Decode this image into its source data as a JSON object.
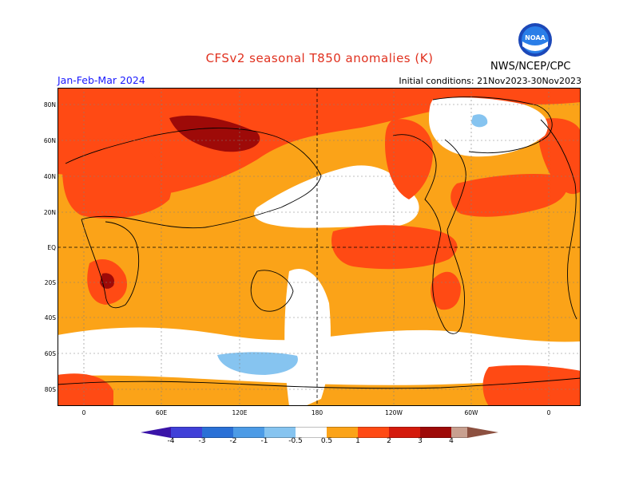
{
  "title": "CFSv2 seasonal T850 anomalies (K)",
  "period": "Jan-Feb-Mar 2024",
  "initial_conditions": "Initial conditions: 21Nov2023-30Nov2023",
  "agency": "NWS/NCEP/CPC",
  "logo_text": "NOAA",
  "lat_labels": [
    "80N",
    "60N",
    "40N",
    "20N",
    "EQ",
    "20S",
    "40S",
    "60S",
    "80S"
  ],
  "lon_labels": [
    "0",
    "60E",
    "120E",
    "180",
    "120W",
    "60W",
    "0"
  ],
  "colorbar": {
    "labels": [
      "-4",
      "-3",
      "-2",
      "-1",
      "-0.5",
      "0.5",
      "1",
      "2",
      "3",
      "4"
    ],
    "colors": [
      "#3a14a8",
      "#4040d8",
      "#2a70d6",
      "#4c9be6",
      "#86c4f0",
      "#ffffff",
      "#fba318",
      "#ff4a14",
      "#d41a0c",
      "#9e0a08",
      "#c8a090",
      "#8c5040"
    ]
  },
  "map_colors": {
    "ocean_bg": "#fba318",
    "neutral": "#ffffff",
    "warm1": "#ff4a14",
    "warm2": "#d41a0c",
    "warm3": "#9e0a08",
    "cool1": "#86c4f0"
  }
}
